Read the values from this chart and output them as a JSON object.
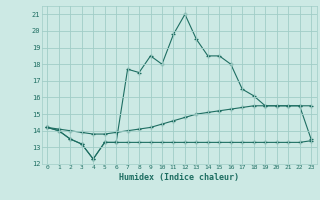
{
  "xlabel": "Humidex (Indice chaleur)",
  "background_color": "#cce9e4",
  "grid_color": "#a0cdc7",
  "line_color": "#1e6e62",
  "xlim": [
    -0.5,
    23.5
  ],
  "ylim": [
    12,
    21.5
  ],
  "yticks": [
    12,
    13,
    14,
    15,
    16,
    17,
    18,
    19,
    20,
    21
  ],
  "xticks": [
    0,
    1,
    2,
    3,
    4,
    5,
    6,
    7,
    8,
    9,
    10,
    11,
    12,
    13,
    14,
    15,
    16,
    17,
    18,
    19,
    20,
    21,
    22,
    23
  ],
  "line1_x": [
    0,
    1,
    2,
    3,
    4,
    5,
    6,
    7,
    8,
    9,
    10,
    11,
    12,
    13,
    14,
    15,
    16,
    17,
    18,
    19,
    20,
    21,
    22,
    23
  ],
  "line1_y": [
    14.2,
    14.0,
    13.5,
    13.2,
    12.3,
    13.3,
    13.3,
    17.7,
    17.5,
    18.5,
    18.0,
    19.8,
    21.0,
    19.5,
    18.5,
    18.5,
    18.0,
    16.5,
    16.1,
    15.5,
    15.5,
    15.5,
    15.5,
    13.5
  ],
  "line2_x": [
    0,
    1,
    2,
    3,
    4,
    5,
    6,
    7,
    8,
    9,
    10,
    11,
    12,
    13,
    14,
    15,
    16,
    17,
    18,
    19,
    20,
    21,
    22,
    23
  ],
  "line2_y": [
    14.2,
    14.1,
    14.0,
    13.9,
    13.8,
    13.8,
    13.9,
    14.0,
    14.1,
    14.2,
    14.4,
    14.6,
    14.8,
    15.0,
    15.1,
    15.2,
    15.3,
    15.4,
    15.5,
    15.5,
    15.5,
    15.5,
    15.5,
    15.5
  ],
  "line3_x": [
    0,
    1,
    2,
    3,
    4,
    5,
    6,
    7,
    8,
    9,
    10,
    11,
    12,
    13,
    14,
    15,
    16,
    17,
    18,
    19,
    20,
    21,
    22,
    23
  ],
  "line3_y": [
    14.2,
    14.0,
    13.5,
    13.2,
    12.3,
    13.3,
    13.3,
    13.3,
    13.3,
    13.3,
    13.3,
    13.3,
    13.3,
    13.3,
    13.3,
    13.3,
    13.3,
    13.3,
    13.3,
    13.3,
    13.3,
    13.3,
    13.3,
    13.4
  ]
}
